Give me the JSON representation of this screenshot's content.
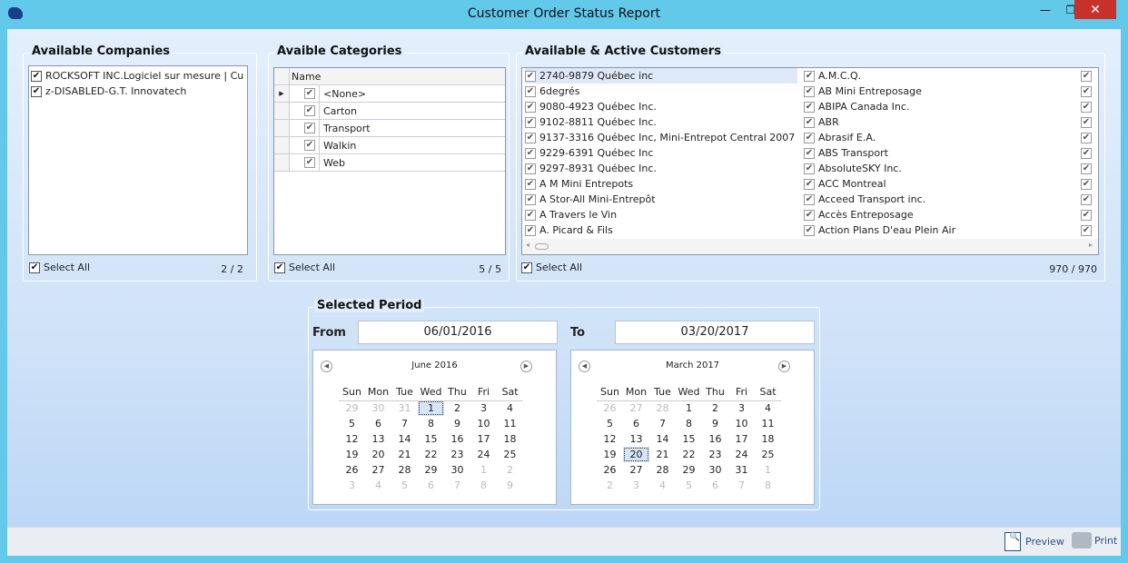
{
  "window": {
    "title": "Customer Order Status Report",
    "min": "—",
    "max": "❐",
    "close": "✕"
  },
  "companies": {
    "title": "Available Companies",
    "items": [
      "ROCKSOFT INC.Logiciel sur mesure  |  Cu",
      "z-DISABLED-G.T. Innovatech"
    ],
    "select_all": "Select All",
    "count": "2 / 2"
  },
  "categories": {
    "title": "Avaible Categories",
    "column": "Name",
    "items": [
      "<None>",
      "Carton",
      "Transport",
      "Walkin",
      "Web"
    ],
    "select_all": "Select All",
    "count": "5 / 5"
  },
  "customers": {
    "title": "Available & Active Customers",
    "col1": [
      "2740-9879 Québec inc",
      "6degrés",
      "9080-4923 Québec Inc.",
      "9102-8811 Québec Inc.",
      "9137-3316 Québec Inc, Mini-Entrepot Central 2007",
      "9229-6391 Québec Inc",
      "9297-8931 Québec Inc.",
      "A M Mini Entrepots",
      "A Stor-All Mini-Entrepôt",
      "A Travers le Vin",
      "A. Picard & Fils"
    ],
    "col2": [
      "A.M.C.Q.",
      "AB Mini Entreposage",
      "ABIPA Canada Inc.",
      "ABR",
      "Abrasif E.A.",
      "ABS Transport",
      "AbsoluteSKY Inc.",
      "ACC Montreal",
      "Acceed Transport inc.",
      "Accès Entreposage",
      "Action Plans D'eau Plein Air"
    ],
    "select_all": "Select All",
    "count": "970 / 970"
  },
  "period": {
    "title": "Selected Period",
    "from_label": "From",
    "from_value": "06/01/2016",
    "to_label": "To",
    "to_value": "03/20/2017",
    "days": [
      "Sun",
      "Mon",
      "Tue",
      "Wed",
      "Thu",
      "Fri",
      "Sat"
    ],
    "from_cal": {
      "month": "June 2016",
      "weeks": [
        [
          "29",
          "30",
          "31",
          "1",
          "2",
          "3",
          "4"
        ],
        [
          "5",
          "6",
          "7",
          "8",
          "9",
          "10",
          "11"
        ],
        [
          "12",
          "13",
          "14",
          "15",
          "16",
          "17",
          "18"
        ],
        [
          "19",
          "20",
          "21",
          "22",
          "23",
          "24",
          "25"
        ],
        [
          "26",
          "27",
          "28",
          "29",
          "30",
          "1",
          "2"
        ],
        [
          "3",
          "4",
          "5",
          "6",
          "7",
          "8",
          "9"
        ]
      ],
      "selected": "1"
    },
    "to_cal": {
      "month": "March 2017",
      "weeks": [
        [
          "26",
          "27",
          "28",
          "1",
          "2",
          "3",
          "4"
        ],
        [
          "5",
          "6",
          "7",
          "8",
          "9",
          "10",
          "11"
        ],
        [
          "12",
          "13",
          "14",
          "15",
          "16",
          "17",
          "18"
        ],
        [
          "19",
          "20",
          "21",
          "22",
          "23",
          "24",
          "25"
        ],
        [
          "26",
          "27",
          "28",
          "29",
          "30",
          "31",
          "1"
        ],
        [
          "2",
          "3",
          "4",
          "5",
          "6",
          "7",
          "8"
        ]
      ],
      "selected": "20"
    }
  },
  "footer": {
    "preview": "Preview",
    "print": "Print"
  }
}
